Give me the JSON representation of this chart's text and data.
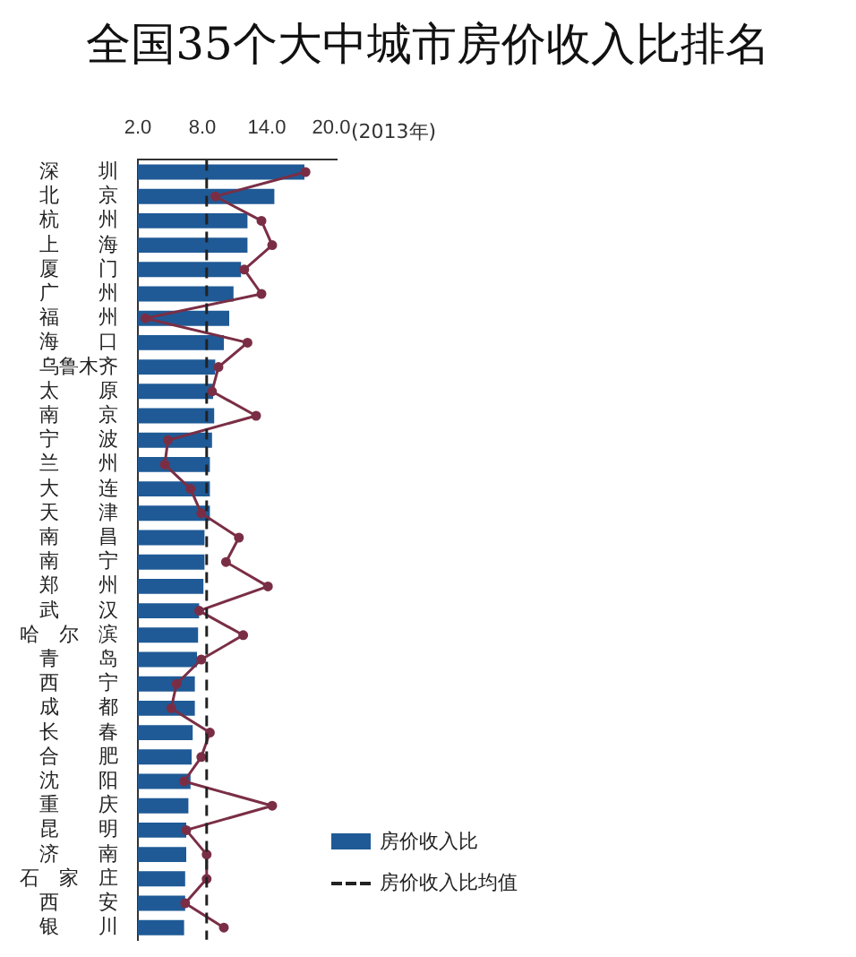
{
  "chart_data": {
    "type": "bar",
    "title": "全国35个大中城市房价收入比排名",
    "orientation": "horizontal",
    "categories": [
      "深　　圳",
      "北　　京",
      "杭　　州",
      "上　　海",
      "厦　　门",
      "广　　州",
      "福　　州",
      "海　　口",
      "乌鲁木齐",
      "太　　原",
      "南　　京",
      "宁　　波",
      "兰　　州",
      "大　　连",
      "天　　津",
      "南　　昌",
      "南　　宁",
      "郑　　州",
      "武　　汉",
      "哈　尔　滨",
      "青　　岛",
      "西　　宁",
      "成　　都",
      "长　　春",
      "合　　肥",
      "沈　　阳",
      "重　　庆",
      "昆　　明",
      "济　　南",
      "石　家　庄",
      "西　　安",
      "银　　川"
    ],
    "series": [
      {
        "name": "房价收入比",
        "color": "#1f5a96",
        "values": [
          17.5,
          14.7,
          12.2,
          12.2,
          11.6,
          10.9,
          10.5,
          10.0,
          9.2,
          9.0,
          9.1,
          8.9,
          8.7,
          8.7,
          8.7,
          8.2,
          8.2,
          8.1,
          7.7,
          7.6,
          7.5,
          7.3,
          7.3,
          7.1,
          7.0,
          6.9,
          6.7,
          6.5,
          6.5,
          6.4,
          6.4,
          6.3
        ]
      },
      {
        "type": "line",
        "color": "#7a2e45",
        "values": [
          17.6,
          9.2,
          13.5,
          14.5,
          11.9,
          13.5,
          2.7,
          12.2,
          9.5,
          8.9,
          13.0,
          4.8,
          4.5,
          6.9,
          7.9,
          11.4,
          10.2,
          14.1,
          7.7,
          11.8,
          7.9,
          5.6,
          5.1,
          8.7,
          7.9,
          6.3,
          14.5,
          6.5,
          8.4,
          8.4,
          6.4,
          10.0
        ]
      }
    ],
    "xlim": [
      2,
      20.5
    ],
    "xticks": [
      {
        "value": 2,
        "label": "2.0"
      },
      {
        "value": 8,
        "label": "8.0"
      },
      {
        "value": 14,
        "label": "14.0"
      },
      {
        "value": 20,
        "label": "20.0"
      }
    ],
    "ref_lines": [
      {
        "axis": "x",
        "value": 8.4,
        "label": "房价收入比均值",
        "line_style": "dashed",
        "color": "#222222"
      }
    ],
    "annotations": [
      "(2013年)"
    ],
    "legend": "bottom right",
    "marker": "circle",
    "grid": false
  }
}
